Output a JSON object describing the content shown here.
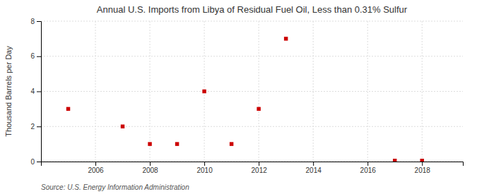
{
  "chart_data": {
    "type": "scatter",
    "title": "Annual U.S. Imports from Libya of Residual Fuel Oil, Less than 0.31% Sulfur",
    "ylabel": "Thousand Barrels per Day",
    "source": "Source: U.S. Energy Information Administration",
    "x": [
      2005,
      2007,
      2008,
      2009,
      2010,
      2011,
      2012,
      2013,
      2017,
      2018
    ],
    "values": [
      3.0,
      2.0,
      1.0,
      1.0,
      4.0,
      1.0,
      3.0,
      7.0,
      0.05,
      0.05
    ],
    "color": "#cc0000",
    "marker": "square",
    "xlim": [
      2004,
      2019.5
    ],
    "ylim": [
      0,
      8
    ],
    "xticks": [
      2006,
      2008,
      2010,
      2012,
      2014,
      2016,
      2018
    ],
    "yticks": [
      0,
      2,
      4,
      6,
      8
    ],
    "grid": true
  }
}
